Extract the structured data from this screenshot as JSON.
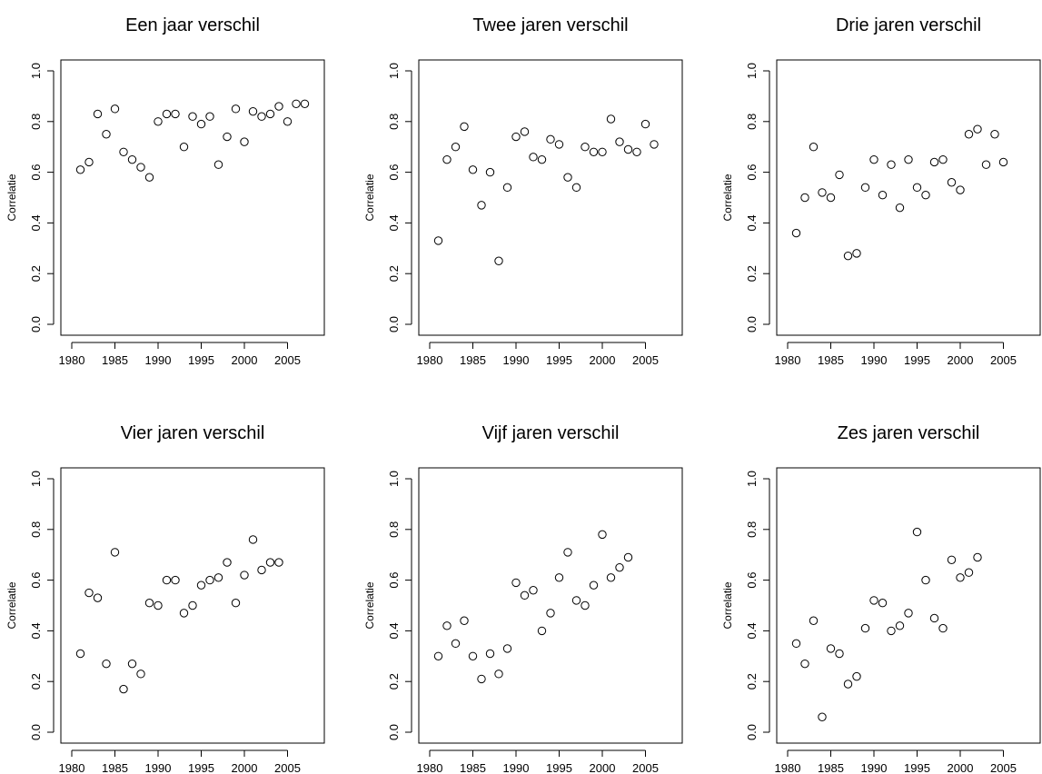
{
  "chart_data": [
    {
      "type": "scatter",
      "title": "Een jaar verschil",
      "ylabel": "Correlatie",
      "xlim": [
        1980,
        2008
      ],
      "ylim": [
        0,
        1
      ],
      "xticks": [
        1980,
        1985,
        1990,
        1995,
        2000,
        2005
      ],
      "yticks": [
        "0.0",
        "0.2",
        "0.4",
        "0.6",
        "0.8",
        "1.0"
      ],
      "points": [
        [
          1981,
          0.61
        ],
        [
          1982,
          0.64
        ],
        [
          1983,
          0.83
        ],
        [
          1984,
          0.75
        ],
        [
          1985,
          0.85
        ],
        [
          1986,
          0.68
        ],
        [
          1987,
          0.65
        ],
        [
          1988,
          0.62
        ],
        [
          1989,
          0.58
        ],
        [
          1990,
          0.8
        ],
        [
          1991,
          0.83
        ],
        [
          1992,
          0.83
        ],
        [
          1993,
          0.7
        ],
        [
          1994,
          0.82
        ],
        [
          1995,
          0.79
        ],
        [
          1996,
          0.82
        ],
        [
          1997,
          0.63
        ],
        [
          1998,
          0.74
        ],
        [
          1999,
          0.85
        ],
        [
          2000,
          0.72
        ],
        [
          2001,
          0.84
        ],
        [
          2002,
          0.82
        ],
        [
          2003,
          0.83
        ],
        [
          2004,
          0.86
        ],
        [
          2005,
          0.8
        ],
        [
          2006,
          0.87
        ],
        [
          2007,
          0.87
        ]
      ]
    },
    {
      "type": "scatter",
      "title": "Twee jaren verschil",
      "ylabel": "Correlatie",
      "xlim": [
        1980,
        2008
      ],
      "ylim": [
        0,
        1
      ],
      "xticks": [
        1980,
        1985,
        1990,
        1995,
        2000,
        2005
      ],
      "yticks": [
        "0.0",
        "0.2",
        "0.4",
        "0.6",
        "0.8",
        "1.0"
      ],
      "points": [
        [
          1981,
          0.33
        ],
        [
          1982,
          0.65
        ],
        [
          1983,
          0.7
        ],
        [
          1984,
          0.78
        ],
        [
          1985,
          0.61
        ],
        [
          1986,
          0.47
        ],
        [
          1987,
          0.6
        ],
        [
          1988,
          0.25
        ],
        [
          1989,
          0.54
        ],
        [
          1990,
          0.74
        ],
        [
          1991,
          0.76
        ],
        [
          1992,
          0.66
        ],
        [
          1993,
          0.65
        ],
        [
          1994,
          0.73
        ],
        [
          1995,
          0.71
        ],
        [
          1996,
          0.58
        ],
        [
          1997,
          0.54
        ],
        [
          1998,
          0.7
        ],
        [
          1999,
          0.68
        ],
        [
          2000,
          0.68
        ],
        [
          2001,
          0.81
        ],
        [
          2002,
          0.72
        ],
        [
          2003,
          0.69
        ],
        [
          2004,
          0.68
        ],
        [
          2005,
          0.79
        ],
        [
          2006,
          0.71
        ]
      ]
    },
    {
      "type": "scatter",
      "title": "Drie jaren verschil",
      "ylabel": "Correlatie",
      "xlim": [
        1980,
        2008
      ],
      "ylim": [
        0,
        1
      ],
      "xticks": [
        1980,
        1985,
        1990,
        1995,
        2000,
        2005
      ],
      "yticks": [
        "0.0",
        "0.2",
        "0.4",
        "0.6",
        "0.8",
        "1.0"
      ],
      "points": [
        [
          1981,
          0.36
        ],
        [
          1982,
          0.5
        ],
        [
          1983,
          0.7
        ],
        [
          1984,
          0.52
        ],
        [
          1985,
          0.5
        ],
        [
          1986,
          0.59
        ],
        [
          1987,
          0.27
        ],
        [
          1988,
          0.28
        ],
        [
          1989,
          0.54
        ],
        [
          1990,
          0.65
        ],
        [
          1991,
          0.51
        ],
        [
          1992,
          0.63
        ],
        [
          1993,
          0.46
        ],
        [
          1994,
          0.65
        ],
        [
          1995,
          0.54
        ],
        [
          1996,
          0.51
        ],
        [
          1997,
          0.64
        ],
        [
          1998,
          0.65
        ],
        [
          1999,
          0.56
        ],
        [
          2000,
          0.53
        ],
        [
          2001,
          0.75
        ],
        [
          2002,
          0.77
        ],
        [
          2003,
          0.63
        ],
        [
          2004,
          0.75
        ],
        [
          2005,
          0.64
        ]
      ]
    },
    {
      "type": "scatter",
      "title": "Vier jaren verschil",
      "ylabel": "Correlatie",
      "xlim": [
        1980,
        2008
      ],
      "ylim": [
        0,
        1
      ],
      "xticks": [
        1980,
        1985,
        1990,
        1995,
        2000,
        2005
      ],
      "yticks": [
        "0.0",
        "0.2",
        "0.4",
        "0.6",
        "0.8",
        "1.0"
      ],
      "points": [
        [
          1981,
          0.31
        ],
        [
          1982,
          0.55
        ],
        [
          1983,
          0.53
        ],
        [
          1984,
          0.27
        ],
        [
          1985,
          0.71
        ],
        [
          1986,
          0.17
        ],
        [
          1987,
          0.27
        ],
        [
          1988,
          0.23
        ],
        [
          1989,
          0.51
        ],
        [
          1990,
          0.5
        ],
        [
          1991,
          0.6
        ],
        [
          1992,
          0.6
        ],
        [
          1993,
          0.47
        ],
        [
          1994,
          0.5
        ],
        [
          1995,
          0.58
        ],
        [
          1996,
          0.6
        ],
        [
          1997,
          0.61
        ],
        [
          1998,
          0.67
        ],
        [
          1999,
          0.51
        ],
        [
          2000,
          0.62
        ],
        [
          2001,
          0.76
        ],
        [
          2002,
          0.64
        ],
        [
          2003,
          0.67
        ],
        [
          2004,
          0.67
        ]
      ]
    },
    {
      "type": "scatter",
      "title": "Vijf jaren verschil",
      "ylabel": "Correlatie",
      "xlim": [
        1980,
        2008
      ],
      "ylim": [
        0,
        1
      ],
      "xticks": [
        1980,
        1985,
        1990,
        1995,
        2000,
        2005
      ],
      "yticks": [
        "0.0",
        "0.2",
        "0.4",
        "0.6",
        "0.8",
        "1.0"
      ],
      "points": [
        [
          1981,
          0.3
        ],
        [
          1982,
          0.42
        ],
        [
          1983,
          0.35
        ],
        [
          1984,
          0.44
        ],
        [
          1985,
          0.3
        ],
        [
          1986,
          0.21
        ],
        [
          1987,
          0.31
        ],
        [
          1988,
          0.23
        ],
        [
          1989,
          0.33
        ],
        [
          1990,
          0.59
        ],
        [
          1991,
          0.54
        ],
        [
          1992,
          0.56
        ],
        [
          1993,
          0.4
        ],
        [
          1994,
          0.47
        ],
        [
          1995,
          0.61
        ],
        [
          1996,
          0.71
        ],
        [
          1997,
          0.52
        ],
        [
          1998,
          0.5
        ],
        [
          1999,
          0.58
        ],
        [
          2000,
          0.78
        ],
        [
          2001,
          0.61
        ],
        [
          2002,
          0.65
        ],
        [
          2003,
          0.69
        ]
      ]
    },
    {
      "type": "scatter",
      "title": "Zes jaren verschil",
      "ylabel": "Correlatie",
      "xlim": [
        1980,
        2008
      ],
      "ylim": [
        0,
        1
      ],
      "xticks": [
        1980,
        1985,
        1990,
        1995,
        2000,
        2005
      ],
      "yticks": [
        "0.0",
        "0.2",
        "0.4",
        "0.6",
        "0.8",
        "1.0"
      ],
      "points": [
        [
          1981,
          0.35
        ],
        [
          1982,
          0.27
        ],
        [
          1983,
          0.44
        ],
        [
          1984,
          0.06
        ],
        [
          1985,
          0.33
        ],
        [
          1986,
          0.31
        ],
        [
          1987,
          0.19
        ],
        [
          1988,
          0.22
        ],
        [
          1989,
          0.41
        ],
        [
          1990,
          0.52
        ],
        [
          1991,
          0.51
        ],
        [
          1992,
          0.4
        ],
        [
          1993,
          0.42
        ],
        [
          1994,
          0.47
        ],
        [
          1995,
          0.79
        ],
        [
          1996,
          0.6
        ],
        [
          1997,
          0.45
        ],
        [
          1998,
          0.41
        ],
        [
          1999,
          0.68
        ],
        [
          2000,
          0.61
        ],
        [
          2001,
          0.63
        ],
        [
          2002,
          0.69
        ]
      ]
    }
  ]
}
